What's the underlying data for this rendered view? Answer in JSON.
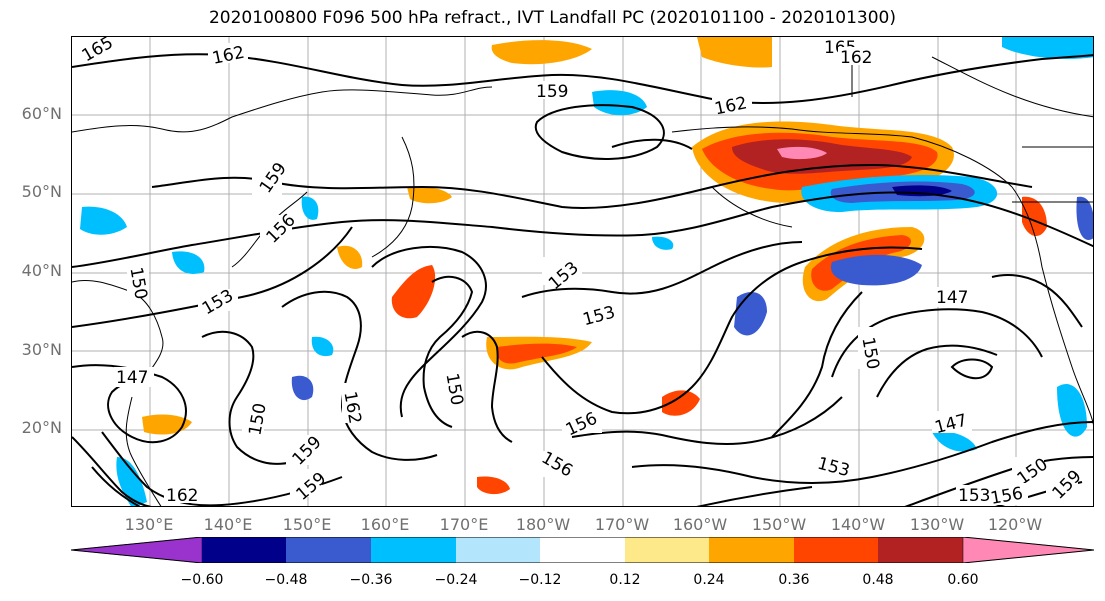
{
  "title": "2020100800 F096 500 hPa refract., IVT Landfall PC (2020101100 - 2020101300)",
  "lat_labels": [
    "60°N",
    "50°N",
    "40°N",
    "30°N",
    "20°N"
  ],
  "lon_labels": [
    "130°E",
    "140°E",
    "150°E",
    "160°E",
    "170°E",
    "180°W",
    "170°W",
    "160°W",
    "150°W",
    "140°W",
    "130°W",
    "120°W"
  ],
  "colorbar": {
    "ticks": [
      "−0.60",
      "−0.48",
      "−0.36",
      "−0.24",
      "−0.12",
      "0.12",
      "0.24",
      "0.36",
      "0.48",
      "0.60"
    ],
    "colors": [
      "#9a32cd",
      "#00008b",
      "#3a5bd0",
      "#00bfff",
      "#b3e5fc",
      "#ffffff",
      "#fde98a",
      "#ffa500",
      "#ff4500",
      "#b22222",
      "#ff88b4"
    ]
  },
  "contour_labels": [
    {
      "text": "165",
      "color": "#000"
    },
    {
      "text": "162",
      "color": "#000"
    },
    {
      "text": "165",
      "color": "#000"
    },
    {
      "text": "162",
      "color": "#000"
    },
    {
      "text": "159",
      "color": "#000"
    },
    {
      "text": "162",
      "color": "#000"
    },
    {
      "text": "159",
      "color": "#000"
    },
    {
      "text": "156",
      "color": "#000"
    },
    {
      "text": "153",
      "color": "#000"
    },
    {
      "text": "150",
      "color": "#000"
    },
    {
      "text": "153",
      "color": "#000"
    },
    {
      "text": "153",
      "color": "#000"
    },
    {
      "text": "150",
      "color": "#000"
    },
    {
      "text": "147",
      "color": "#000"
    },
    {
      "text": "150",
      "color": "#000"
    },
    {
      "text": "147",
      "color": "#000"
    },
    {
      "text": "150",
      "color": "#000"
    },
    {
      "text": "162",
      "color": "#000"
    },
    {
      "text": "159",
      "color": "#000"
    },
    {
      "text": "156",
      "color": "#000"
    },
    {
      "text": "147",
      "color": "#000"
    },
    {
      "text": "156",
      "color": "#000"
    },
    {
      "text": "153",
      "color": "#000"
    },
    {
      "text": "159",
      "color": "#000"
    },
    {
      "text": "162",
      "color": "#000"
    },
    {
      "text": "150",
      "color": "#000"
    },
    {
      "text": "156",
      "color": "#000"
    },
    {
      "text": "153",
      "color": "#000"
    },
    {
      "text": "159",
      "color": "#000"
    }
  ]
}
